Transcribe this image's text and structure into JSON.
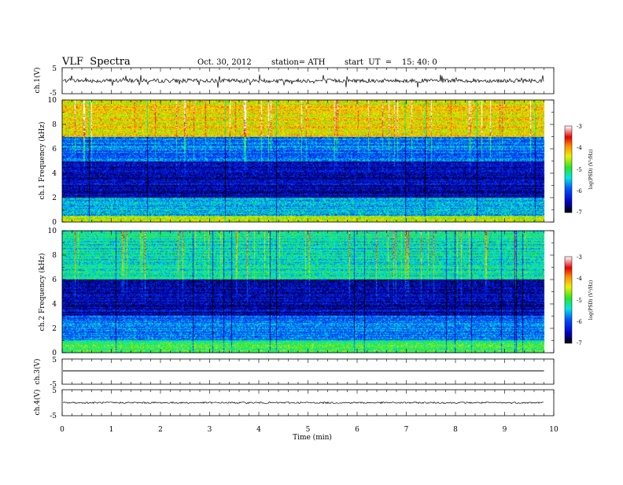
{
  "header": {
    "title": "VLF  Spectra",
    "date": "Oct. 30, 2012",
    "station": "station= ATH",
    "start": "start  UT  =    15: 40: 0"
  },
  "chart_data": [
    {
      "type": "line",
      "panel": "ch1-waveform",
      "ylabel": "ch.1(V)",
      "ylim": [
        -5,
        5
      ],
      "yticks": [
        "5",
        "-5"
      ],
      "xlim": [
        0,
        10
      ],
      "approx_baseline": 0,
      "approx_noise_amplitude": 1.5,
      "color": "#000000"
    },
    {
      "type": "heatmap",
      "panel": "ch1-spectrogram",
      "ylabel": "ch.1 Frequency (kHz)",
      "ylim": [
        0,
        10
      ],
      "yticks": [
        "0",
        "2",
        "4",
        "6",
        "8",
        "10"
      ],
      "xlim": [
        0,
        10
      ],
      "data_end_min": 9.8,
      "colorbar": {
        "label": "log(PSD) (V²/Hz)",
        "range": [
          -7,
          -3
        ],
        "ticks": [
          "-3",
          "-4",
          "-5",
          "-6",
          "-7"
        ]
      },
      "approx_band_logpsd": [
        {
          "freq": [
            0,
            0.5
          ],
          "logpsd": -4.5
        },
        {
          "freq": [
            0.5,
            2
          ],
          "logpsd": -5.5
        },
        {
          "freq": [
            2,
            5
          ],
          "logpsd": -6.5
        },
        {
          "freq": [
            5,
            7
          ],
          "logpsd": -5.8
        },
        {
          "freq": [
            7,
            10
          ],
          "logpsd": -4.3
        }
      ]
    },
    {
      "type": "heatmap",
      "panel": "ch2-spectrogram",
      "ylabel": "ch.2 Frequency (kHz)",
      "ylim": [
        0,
        10
      ],
      "yticks": [
        "0",
        "2",
        "4",
        "6",
        "8",
        "10"
      ],
      "xlim": [
        0,
        10
      ],
      "data_end_min": 9.8,
      "colorbar": {
        "label": "log(PSD) (V²/Hz)",
        "range": [
          -7,
          -3
        ],
        "ticks": [
          "-3",
          "-4",
          "-5",
          "-6",
          "-7"
        ]
      },
      "approx_band_logpsd": [
        {
          "freq": [
            0,
            1
          ],
          "logpsd": -5.0
        },
        {
          "freq": [
            1,
            3
          ],
          "logpsd": -5.8
        },
        {
          "freq": [
            3,
            6
          ],
          "logpsd": -6.5
        },
        {
          "freq": [
            6,
            10
          ],
          "logpsd": -5.3
        }
      ]
    },
    {
      "type": "line",
      "panel": "ch3-waveform",
      "ylabel": "ch.3(V)",
      "ylim": [
        -5,
        5
      ],
      "yticks": [
        "5",
        "-5"
      ],
      "xlim": [
        0,
        10
      ],
      "approx_baseline": 0,
      "color": "#000000"
    },
    {
      "type": "line",
      "panel": "ch4-waveform",
      "ylabel": "ch.4(V)",
      "ylim": [
        -5,
        5
      ],
      "yticks": [
        "5",
        "-5"
      ],
      "xlim": [
        0,
        10
      ],
      "approx_baseline": 0,
      "approx_noise_amplitude": 0.3,
      "color": "#000000"
    }
  ],
  "xaxis": {
    "label": "Time  (min)",
    "ticks": [
      "0",
      "1",
      "2",
      "3",
      "4",
      "5",
      "6",
      "7",
      "8",
      "9",
      "10"
    ]
  },
  "colors": {
    "scale": [
      "#000000",
      "#0000c8",
      "#0050ff",
      "#00e6e6",
      "#28e628",
      "#f0f000",
      "#ff8c00",
      "#e60000",
      "#ffffff"
    ]
  }
}
